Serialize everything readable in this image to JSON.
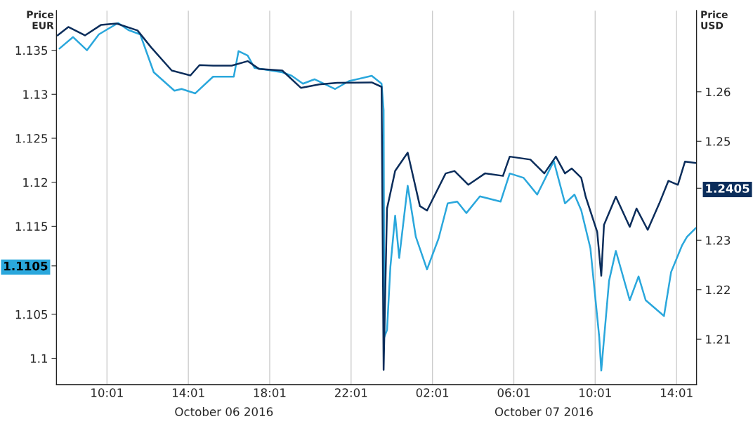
{
  "chart_data": {
    "type": "line",
    "ylabel": "Price\nEUR",
    "y2label": "Price\nUSD",
    "xlim": [
      "2016-10-06T07:32",
      "2016-10-07T15:00"
    ],
    "xticks": [
      {
        "value": "2016-10-06T10:01",
        "label": "10:01"
      },
      {
        "value": "2016-10-06T14:01",
        "label": "14:01"
      },
      {
        "value": "2016-10-06T18:01",
        "label": "18:01"
      },
      {
        "value": "2016-10-06T22:01",
        "label": "22:01"
      },
      {
        "value": "2016-10-07T02:01",
        "label": "02:01"
      },
      {
        "value": "2016-10-07T06:01",
        "label": "06:01"
      },
      {
        "value": "2016-10-07T10:01",
        "label": "10:01"
      },
      {
        "value": "2016-10-07T14:01",
        "label": "14:01"
      }
    ],
    "ylim": [
      1.097,
      1.1395
    ],
    "yticks": [
      1.1,
      1.105,
      {
        "value": 1.1105,
        "label": "1.1105"
      },
      1.115,
      1.12,
      1.125,
      1.13,
      1.135
    ],
    "y2lim": [
      1.2008,
      1.2764
    ],
    "y2ticks": [
      1.21,
      1.22,
      1.23,
      {
        "value": 1.2405,
        "label": "1.2405"
      },
      1.25,
      1.26
    ],
    "grid": "x",
    "legend": false,
    "annotations": [
      "October 06 2016",
      "October 07 2016"
    ],
    "series": [
      {
        "color": "#0b2d5b",
        "axis": "y2",
        "x": [
          "2016-10-06T07:35",
          "2016-10-06T08:07",
          "2016-10-06T08:56",
          "2016-10-06T09:43",
          "2016-10-06T10:29",
          "2016-10-06T11:31",
          "2016-10-06T12:11",
          "2016-10-06T13:12",
          "2016-10-06T14:07",
          "2016-10-06T14:34",
          "2016-10-06T15:14",
          "2016-10-06T16:09",
          "2016-10-06T16:56",
          "2016-10-06T17:30",
          "2016-10-06T18:38",
          "2016-10-06T19:33",
          "2016-10-06T20:27",
          "2016-10-06T21:20",
          "2016-10-06T23:02",
          "2016-10-06T23:31",
          "2016-10-06T23:37",
          "2016-10-06T23:47",
          "2016-10-07T00:11",
          "2016-10-07T00:48",
          "2016-10-07T01:24",
          "2016-10-07T01:45",
          "2016-10-07T02:40",
          "2016-10-07T03:06",
          "2016-10-07T03:47",
          "2016-10-07T04:36",
          "2016-10-07T05:29",
          "2016-10-07T05:49",
          "2016-10-07T06:50",
          "2016-10-07T07:31",
          "2016-10-07T08:05",
          "2016-10-07T08:32",
          "2016-10-07T08:52",
          "2016-10-07T09:20",
          "2016-10-07T09:33",
          "2016-10-07T10:07",
          "2016-10-07T10:19",
          "2016-10-07T10:27",
          "2016-10-07T11:02",
          "2016-10-07T11:43",
          "2016-10-07T12:03",
          "2016-10-07T12:36",
          "2016-10-07T13:10",
          "2016-10-07T13:37",
          "2016-10-07T14:05",
          "2016-10-07T14:26",
          "2016-10-07T14:58"
        ],
        "values": [
          1.2714,
          1.2731,
          1.2714,
          1.2735,
          1.2738,
          1.2724,
          1.269,
          1.2643,
          1.2633,
          1.2654,
          1.2653,
          1.2653,
          1.2662,
          1.2646,
          1.2643,
          1.2608,
          1.2615,
          1.2618,
          1.2619,
          1.261,
          1.2038,
          1.2364,
          1.244,
          1.2477,
          1.2369,
          1.236,
          1.2435,
          1.244,
          1.2412,
          1.2435,
          1.243,
          1.2469,
          1.2463,
          1.2435,
          1.2469,
          1.2435,
          1.2445,
          1.2426,
          1.2388,
          1.2317,
          1.2228,
          1.2331,
          1.2388,
          1.2327,
          1.2364,
          1.2321,
          1.2374,
          1.242,
          1.2412,
          1.2459,
          1.2456
        ]
      },
      {
        "color": "#2aa7dc",
        "axis": "y",
        "x": [
          "2016-10-06T07:41",
          "2016-10-06T08:21",
          "2016-10-06T09:02",
          "2016-10-06T09:37",
          "2016-10-06T10:03",
          "2016-10-06T10:34",
          "2016-10-06T11:04",
          "2016-10-06T11:39",
          "2016-10-06T12:19",
          "2016-10-06T13:20",
          "2016-10-06T13:41",
          "2016-10-06T14:21",
          "2016-10-06T15:14",
          "2016-10-06T16:15",
          "2016-10-06T16:29",
          "2016-10-06T16:56",
          "2016-10-06T17:16",
          "2016-10-06T18:38",
          "2016-10-06T19:06",
          "2016-10-06T19:39",
          "2016-10-06T20:13",
          "2016-10-06T21:14",
          "2016-10-06T21:55",
          "2016-10-06T23:02",
          "2016-10-06T23:31",
          "2016-10-06T23:37",
          "2016-10-06T23:39",
          "2016-10-06T23:47",
          "2016-10-06T23:57",
          "2016-10-07T00:11",
          "2016-10-07T00:23",
          "2016-10-07T00:48",
          "2016-10-07T01:12",
          "2016-10-07T01:45",
          "2016-10-07T02:19",
          "2016-10-07T02:46",
          "2016-10-07T03:14",
          "2016-10-07T03:41",
          "2016-10-07T04:21",
          "2016-10-07T05:22",
          "2016-10-07T05:49",
          "2016-10-07T06:30",
          "2016-10-07T07:10",
          "2016-10-07T07:59",
          "2016-10-07T08:32",
          "2016-10-07T09:00",
          "2016-10-07T09:20",
          "2016-10-07T09:47",
          "2016-10-07T10:13",
          "2016-10-07T10:19",
          "2016-10-07T10:42",
          "2016-10-07T11:02",
          "2016-10-07T11:43",
          "2016-10-07T12:09",
          "2016-10-07T12:30",
          "2016-10-07T13:24",
          "2016-10-07T13:45",
          "2016-10-07T14:17",
          "2016-10-07T14:32",
          "2016-10-07T14:58"
        ],
        "values": [
          1.1352,
          1.1365,
          1.135,
          1.1368,
          1.1374,
          1.1381,
          1.1373,
          1.1368,
          1.1325,
          1.1304,
          1.1306,
          1.1301,
          1.132,
          1.132,
          1.1349,
          1.1344,
          1.133,
          1.1325,
          1.1321,
          1.1312,
          1.1317,
          1.1306,
          1.1315,
          1.1321,
          1.1312,
          1.1282,
          1.1024,
          1.1032,
          1.1104,
          1.1162,
          1.1114,
          1.1196,
          1.1138,
          1.1101,
          1.1136,
          1.1176,
          1.1178,
          1.1165,
          1.1184,
          1.1178,
          1.121,
          1.1205,
          1.1186,
          1.1224,
          1.1176,
          1.1186,
          1.1168,
          1.1125,
          1.1024,
          1.0986,
          1.1088,
          1.1122,
          1.1066,
          1.1093,
          1.1066,
          1.1048,
          1.1098,
          1.1128,
          1.1138,
          1.1148
        ]
      }
    ]
  }
}
